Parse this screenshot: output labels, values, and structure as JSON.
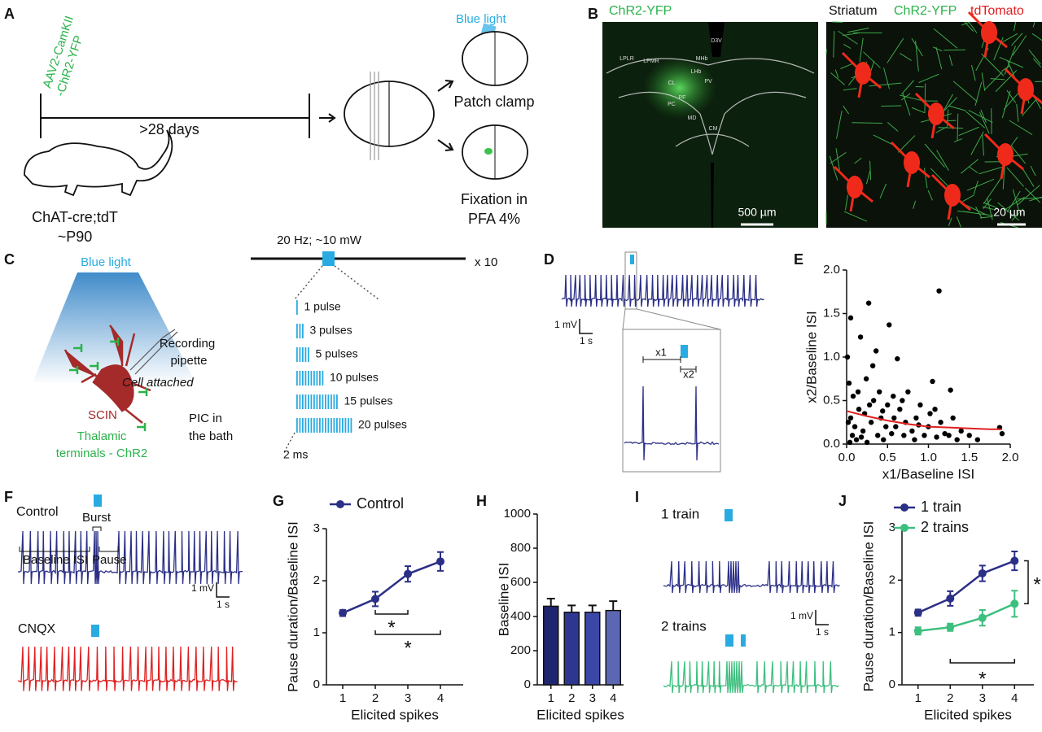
{
  "panel_letters": [
    "A",
    "B",
    "C",
    "D",
    "E",
    "F",
    "G",
    "H",
    "I",
    "J"
  ],
  "panel_a": {
    "virus": [
      "AAV2-CamKII",
      "-ChR2-YFP"
    ],
    "duration": ">28 days",
    "mouse": [
      "ChAT-cre;tdT",
      "~P90"
    ],
    "light": "Blue light",
    "patch": "Patch clamp",
    "fixation": [
      "Fixation in",
      "PFA 4%"
    ]
  },
  "panel_b": {
    "left_label": "ChR2-YFP",
    "regions": [
      "D3V",
      "LPLR",
      "LPMR",
      "MHb",
      "LHb",
      "CL",
      "PV",
      "PF",
      "PC",
      "MD",
      "CM"
    ],
    "left_scale": "500 µm",
    "right_labels": [
      "Striatum",
      "ChR2-YFP",
      "tdTomato"
    ],
    "right_scale": "20 µm"
  },
  "panel_c": {
    "light": "Blue light",
    "pipette": [
      "Recording",
      "pipette"
    ],
    "cell_attached": "Cell attached",
    "cell": "SCIN",
    "bath": [
      "PIC in",
      "the bath"
    ],
    "terminals": [
      "Thalamic",
      "terminals - ChR2"
    ],
    "stim": "20 Hz; ~10 mW",
    "repeat": "x 10",
    "pulses": [
      "1 pulse",
      "3 pulses",
      "5 pulses",
      "10 pulses",
      "15 pulses",
      "20 pulses"
    ],
    "pulse_width": "2 ms"
  },
  "panel_d": {
    "scale_v": "1 mV",
    "scale_t": "1 s",
    "x1": "x1",
    "x2": "x2"
  },
  "panel_f": {
    "control": "Control",
    "burst": "Burst",
    "baseline": "Baseline ISI",
    "pause": "Pause",
    "scale_v": "1 mV",
    "scale_t": "1 s",
    "cnqx": "CNQX"
  },
  "panel_i": {
    "one": "1 train",
    "two": "2 trains",
    "scale_v": "1 mV",
    "scale_t": "1 s"
  },
  "chart_data": [
    {
      "type": "scatter",
      "xlabel": "x1/Baseline ISI",
      "ylabel": "x2/Baseline ISI",
      "xlim": [
        0,
        2
      ],
      "ylim": [
        0,
        2
      ],
      "xticks": [
        {
          "value": 0,
          "label": "0.0"
        },
        0.5,
        {
          "value": 1,
          "label": "1.0"
        },
        1.5,
        {
          "value": 2,
          "label": "2.0"
        }
      ],
      "yticks": [
        {
          "value": 0,
          "label": "0.0"
        },
        0.5,
        {
          "value": 1,
          "label": "1.0"
        },
        1.5,
        {
          "value": 2,
          "label": "2.0"
        }
      ],
      "series": [
        {
          "color": "#000000",
          "style": "points",
          "x": [
            0.01,
            0.03,
            0.05,
            0.05,
            0.08,
            0.1,
            0.12,
            0.15,
            0.17,
            0.2,
            0.22,
            0.25,
            0.27,
            0.3,
            0.33,
            0.36,
            0.38,
            0.4,
            0.42,
            0.45,
            0.48,
            0.5,
            0.52,
            0.55,
            0.58,
            0.6,
            0.62,
            0.65,
            0.7,
            0.72,
            0.75,
            0.8,
            0.83,
            0.85,
            0.9,
            0.95,
            1.0,
            1.02,
            1.05,
            1.1,
            1.13,
            1.15,
            1.2,
            1.25,
            1.27,
            1.3,
            1.35,
            1.4,
            1.5,
            1.6,
            1.87,
            1.9,
            0.02,
            0.07,
            0.14,
            0.24,
            0.32,
            0.44,
            0.57,
            0.68,
            0.88,
            1.08,
            0.04,
            0.18,
            0.28
          ],
          "values": [
            1.0,
            0.7,
            1.45,
            0.3,
            0.55,
            0.2,
            0.05,
            0.4,
            1.23,
            0.15,
            0.35,
            0.02,
            1.62,
            0.25,
            0.5,
            1.07,
            0.1,
            0.6,
            0.3,
            0.05,
            0.2,
            0.45,
            1.37,
            0.12,
            0.3,
            0.2,
            0.98,
            0.4,
            0.1,
            0.25,
            0.6,
            0.15,
            0.05,
            0.3,
            0.45,
            0.1,
            0.2,
            0.35,
            0.72,
            0.08,
            1.76,
            0.25,
            0.12,
            0.1,
            0.62,
            0.3,
            0.05,
            0.15,
            0.1,
            0.05,
            0.19,
            0.12,
            0.25,
            0.1,
            0.6,
            0.75,
            0.9,
            0.38,
            0.55,
            0.5,
            0.22,
            0.4,
            0.02,
            0.08,
            0.45
          ]
        },
        {
          "color": "#e02020",
          "style": "line",
          "x": [
            0,
            0.25,
            0.5,
            0.75,
            1,
            1.25,
            1.5,
            1.75,
            1.9
          ],
          "values": [
            0.38,
            0.32,
            0.27,
            0.23,
            0.2,
            0.19,
            0.18,
            0.17,
            0.17
          ]
        }
      ]
    },
    {
      "type": "line",
      "xlabel": "Elicited spikes",
      "ylabel": "Pause duration/Baseline ISI",
      "x": [
        1,
        2,
        3,
        4
      ],
      "xlim": [
        0.5,
        4.7
      ],
      "xticks": [
        1,
        2,
        3,
        4
      ],
      "ylim": [
        0,
        3
      ],
      "yticks": [
        0,
        1,
        2,
        3
      ],
      "series": [
        {
          "name": "Control",
          "color": "#2b2f86",
          "values": [
            1.38,
            1.65,
            2.13,
            2.37
          ],
          "errors": [
            0.06,
            0.14,
            0.15,
            0.18
          ]
        }
      ],
      "annotations": [
        "*",
        "*"
      ]
    },
    {
      "type": "bar",
      "xlabel": "Elicited spikes",
      "ylabel": "Baseline ISI",
      "categories": [
        "1",
        "2",
        "3",
        "4"
      ],
      "values": [
        460,
        425,
        425,
        435
      ],
      "errors": [
        45,
        40,
        40,
        55
      ],
      "colors": [
        "#1f2670",
        "#2d3690",
        "#3b47a6",
        "#5c67b4"
      ],
      "ylim": [
        0,
        1000
      ],
      "yticks": [
        0,
        200,
        400,
        600,
        800,
        1000
      ]
    },
    {
      "type": "line",
      "xlabel": "Elicited spikes",
      "ylabel": "Pause duration/Baseline ISI",
      "x": [
        1,
        2,
        3,
        4
      ],
      "xlim": [
        0.5,
        4.6
      ],
      "xticks": [
        1,
        2,
        3,
        4
      ],
      "ylim": [
        0,
        3
      ],
      "yticks": [
        0,
        1,
        2,
        3
      ],
      "series": [
        {
          "name": "1 train",
          "color": "#2b2f86",
          "values": [
            1.38,
            1.65,
            2.13,
            2.37
          ],
          "errors": [
            0.06,
            0.14,
            0.15,
            0.18
          ]
        },
        {
          "name": "2 trains",
          "color": "#3dbf7f",
          "values": [
            1.03,
            1.1,
            1.28,
            1.55
          ],
          "errors": [
            0.07,
            0.07,
            0.15,
            0.25
          ]
        }
      ],
      "annotations": [
        "*",
        "*"
      ]
    }
  ]
}
